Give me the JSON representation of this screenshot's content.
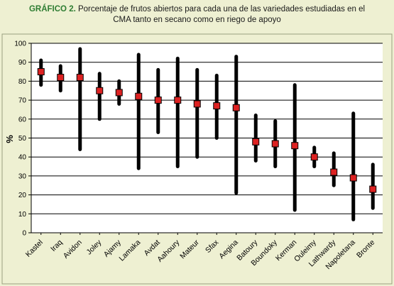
{
  "caption": {
    "label": "GRÁFICO 2.",
    "text_line1": " Porcentaje de frutos abiertos para cada una de las variedades estudiadas en el",
    "text_line2": "CMA tanto en secano como en riego de apoyo"
  },
  "colors": {
    "background": "#eef0d2",
    "plot": "#ffffff",
    "range": "#000000",
    "marker": "#dd2222",
    "caption_label": "#2e7d32"
  },
  "chart_data": {
    "type": "range-dot",
    "xlabel": "",
    "ylabel": "%",
    "ylim": [
      0,
      100
    ],
    "yticks": [
      0,
      10,
      20,
      30,
      40,
      50,
      60,
      70,
      80,
      90,
      100
    ],
    "grid": true,
    "categories": [
      "Kastel",
      "Iraq",
      "Avidon",
      "Joley",
      "Ajamy",
      "Lamaka",
      "Avdat",
      "Aahoury",
      "Mateur",
      "Sfax",
      "Aegina",
      "Batoury",
      "Boundoky",
      "Kerman",
      "Ouleimy",
      "Lathwardy",
      "Napoletana",
      "Bronte"
    ],
    "mean": [
      85,
      82,
      82,
      75,
      74,
      72,
      70,
      70,
      68,
      67,
      66,
      48,
      47,
      46,
      40,
      32,
      29,
      23
    ],
    "min": [
      78,
      75,
      44,
      60,
      68,
      34,
      53,
      35,
      40,
      50,
      21,
      38,
      35,
      12,
      35,
      25,
      7,
      13
    ],
    "max": [
      91,
      88,
      97,
      84,
      80,
      94,
      86,
      92,
      86,
      83,
      93,
      62,
      59,
      78,
      45,
      42,
      63,
      36
    ]
  }
}
